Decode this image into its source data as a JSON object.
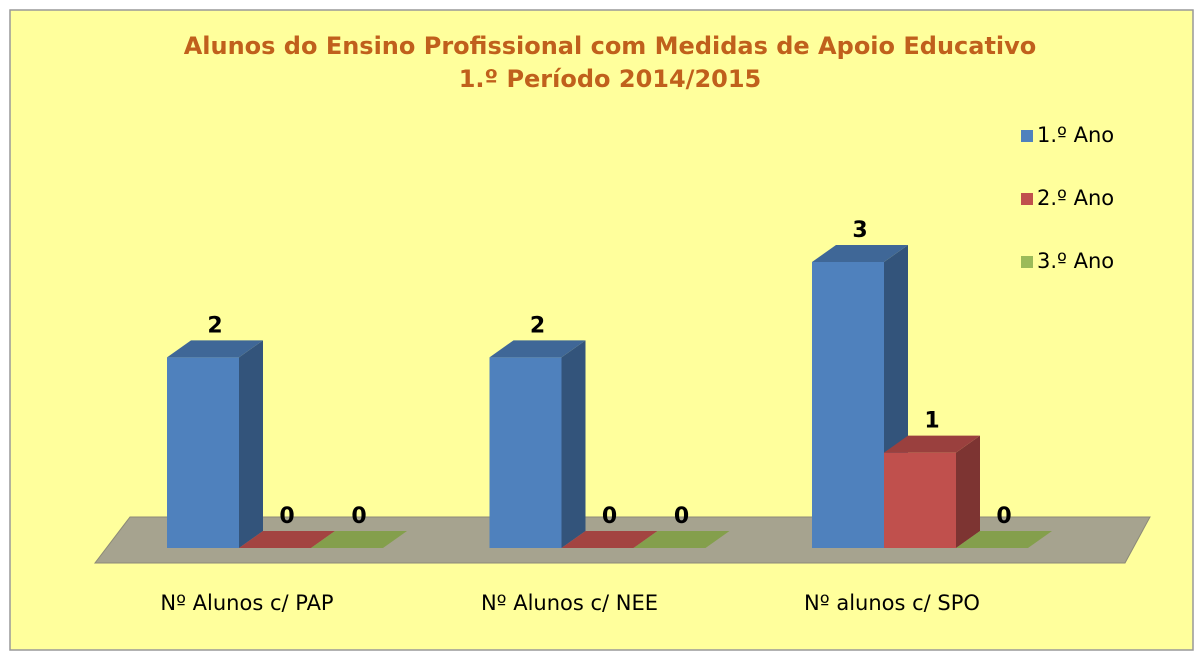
{
  "chart_data": {
    "type": "bar3d",
    "title": [
      "Alunos do Ensino Profissional com Medidas de Apoio Educativo",
      "1.º  Período 2014/2015"
    ],
    "categories": [
      "Nº Alunos c/ PAP",
      "Nº Alunos c/ NEE",
      "Nº alunos c/ SPO"
    ],
    "series": [
      {
        "name": "1.º Ano",
        "color": "#4f81bd",
        "values": [
          2,
          2,
          3
        ]
      },
      {
        "name": "2.º Ano",
        "color": "#c0504d",
        "values": [
          0,
          0,
          1
        ]
      },
      {
        "name": "3.º Ano",
        "color": "#9bbb59",
        "values": [
          0,
          0,
          0
        ]
      }
    ],
    "legend": "right"
  }
}
